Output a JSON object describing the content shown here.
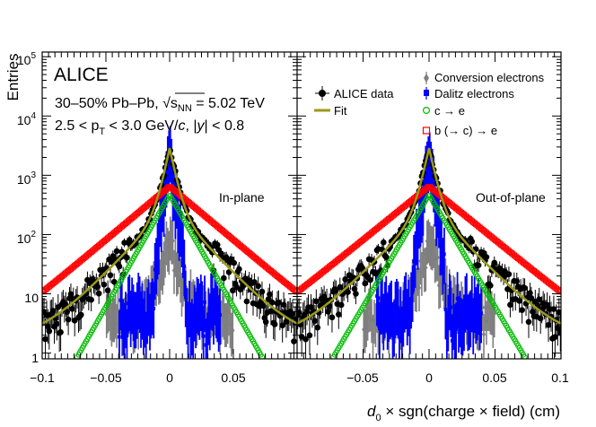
{
  "chart_data": {
    "type": "scatter",
    "experiment_label": "ALICE",
    "system_line": "30–50% Pb–Pb, √s",
    "system_sub": "NN",
    "system_energy": " = 5.02 TeV",
    "kin_a": "2.5 < p",
    "kin_b": "T",
    "kin_c": " < 3.0 GeV/",
    "kin_d": "c",
    "kin_e": ", |",
    "kin_f": "y",
    "kin_g": "| < 0.8",
    "ylabel": "Entries",
    "xlabel_var": "d",
    "xlabel_sub": "0",
    "xlabel_rest": " × sgn(charge × field) (cm)",
    "yscale": "log",
    "xlim": [
      -0.1,
      0.1
    ],
    "ylim": [
      0.8,
      120000
    ],
    "panels": [
      {
        "label": "In-plane",
        "xlim": [
          -0.1,
          0.1
        ],
        "xticks": [
          "−0.1",
          "−0.05",
          "0",
          "0.05"
        ]
      },
      {
        "label": "Out-of-plane",
        "xlim": [
          -0.1,
          0.1
        ],
        "xticks": [
          "−0.05",
          "0",
          "0.05",
          "0.1"
        ]
      }
    ],
    "yticks": [
      {
        "base": "1",
        "exp": ""
      },
      {
        "base": "10",
        "exp": ""
      },
      {
        "base": "10",
        "exp": "2"
      },
      {
        "base": "10",
        "exp": "3"
      },
      {
        "base": "10",
        "exp": "4"
      },
      {
        "base": "10",
        "exp": "5"
      }
    ],
    "legend_left": [
      {
        "name": "ALICE data",
        "color": "#000000",
        "marker": "filled-circle"
      },
      {
        "name": "Fit",
        "color": "#9a9a1a",
        "marker": "line"
      }
    ],
    "legend_right": [
      {
        "name": "Conversion electrons",
        "color": "#7f7f7f",
        "marker": "filled-diamond"
      },
      {
        "name": "Dalitz electrons",
        "color": "#0000ff",
        "marker": "filled-square"
      },
      {
        "name": "c → e",
        "color": "#00bb00",
        "marker": "open-circle"
      },
      {
        "name": "b (→ c) → e",
        "color": "#ff0000",
        "marker": "open-square"
      }
    ],
    "series_shapes": {
      "data": {
        "peak": 3000,
        "core_width": 0.004,
        "tail_amp": 300,
        "tail_width": 0.019
      },
      "fit": {
        "peak": 3000,
        "core_width": 0.004,
        "tail_amp": 300,
        "tail_width": 0.019
      },
      "beauty": {
        "peak": 650,
        "tail_width": 0.024
      },
      "charm": {
        "peak": 470,
        "tail_width": 0.0115
      },
      "dalitz": {
        "peak": 2100,
        "core_width": 0.0028
      },
      "conversion": {
        "peak": 80,
        "core_width": 0.0055
      }
    },
    "colors": {
      "data": "#000000",
      "fit": "#9a9a1a",
      "conversion": "#7f7f7f",
      "dalitz": "#0000ff",
      "charm": "#00bb00",
      "beauty": "#ff0000"
    }
  }
}
